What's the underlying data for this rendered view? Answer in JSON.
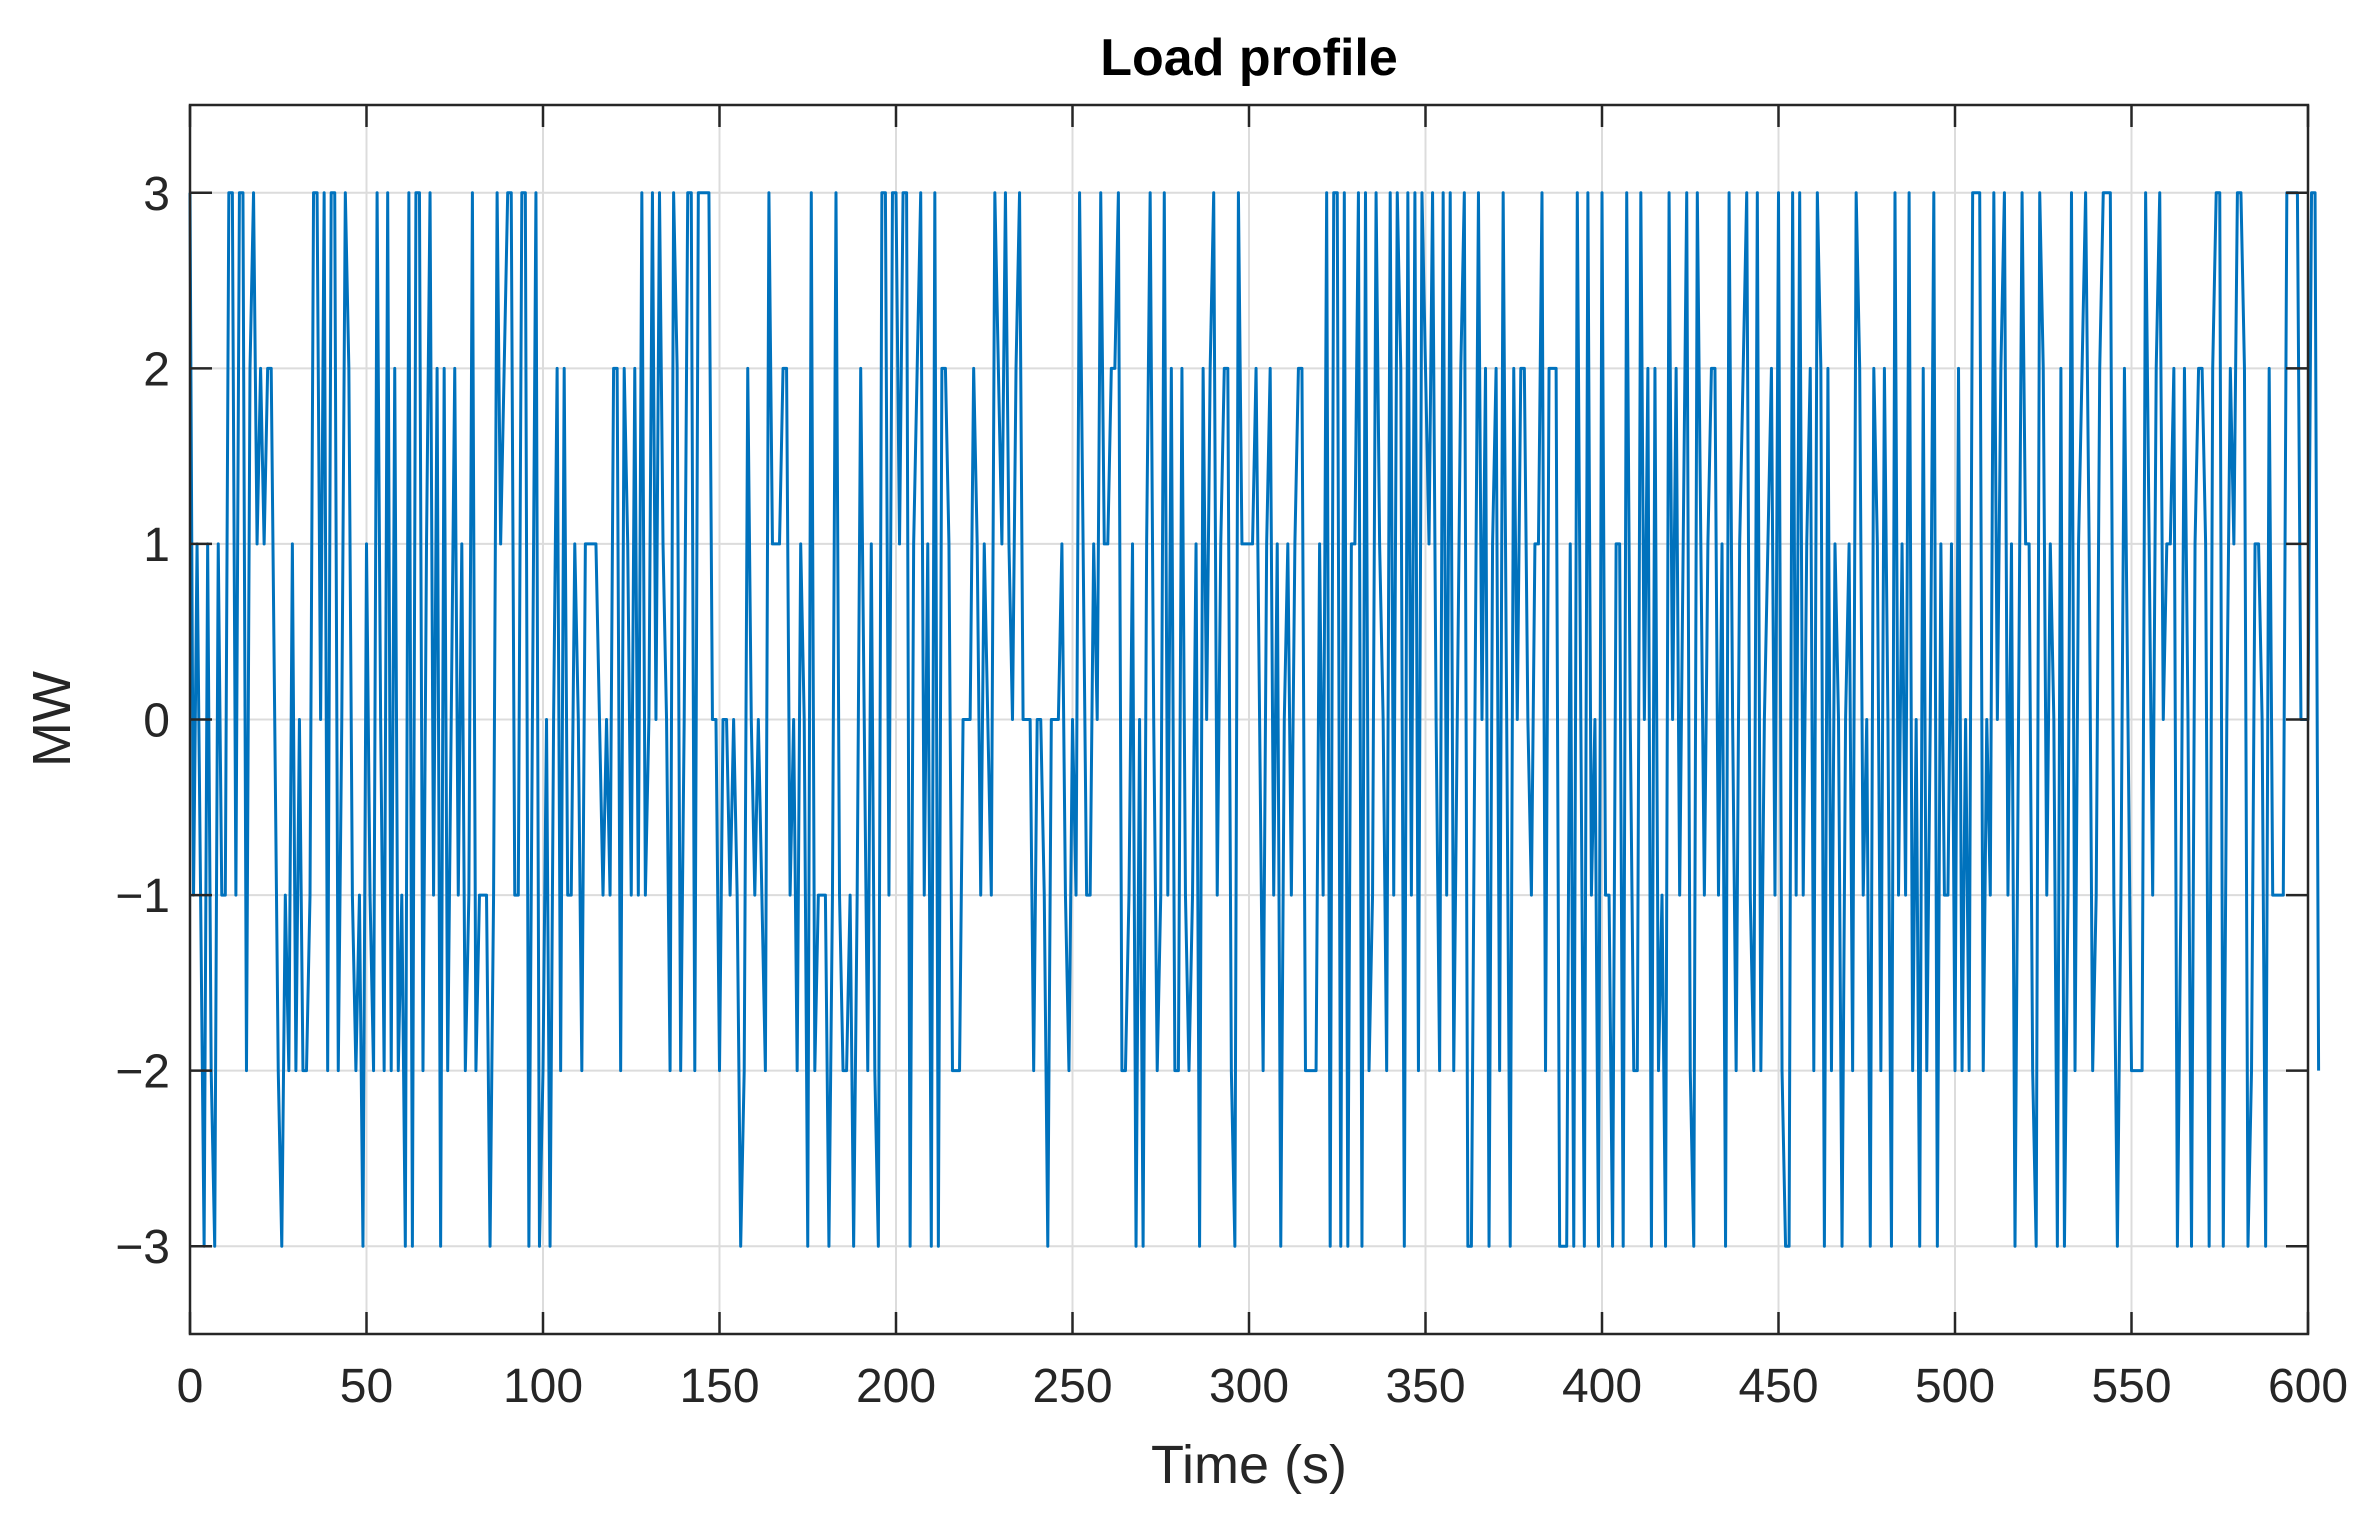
{
  "chart_data": {
    "type": "line",
    "title": "Load profile",
    "xlabel": "Time (s)",
    "ylabel": "MW",
    "xlim": [
      0,
      600
    ],
    "ylim": [
      -3.5,
      3.5
    ],
    "xticks": [
      0,
      50,
      100,
      150,
      200,
      250,
      300,
      350,
      400,
      450,
      500,
      550,
      600
    ],
    "yticks": [
      -3,
      -2,
      -1,
      0,
      1,
      2,
      3
    ],
    "xtick_labels": [
      "0",
      "50",
      "100",
      "150",
      "200",
      "250",
      "300",
      "350",
      "400",
      "450",
      "500",
      "550",
      "600"
    ],
    "ytick_labels": [
      "−3",
      "−2",
      "−1",
      "0",
      "1",
      "2",
      "3"
    ],
    "grid": true,
    "line_color": "#0072BD",
    "x_step": 1,
    "series": [
      {
        "values": [
          3,
          -1,
          1,
          -1,
          -3,
          1,
          -2,
          -3,
          1,
          -1,
          -1,
          3,
          3,
          -1,
          3,
          3,
          -2,
          2,
          3,
          1,
          2,
          1,
          2,
          2,
          0,
          -2,
          -3,
          -1,
          -2,
          1,
          -2,
          0,
          -2,
          -2,
          -1,
          3,
          3,
          0,
          3,
          -2,
          3,
          3,
          -2,
          0,
          3,
          2,
          -1,
          -2,
          -1,
          -3,
          1,
          -1,
          -2,
          3,
          0,
          -2,
          3,
          -2,
          2,
          -2,
          -1,
          -3,
          3,
          -3,
          3,
          3,
          -2,
          1,
          3,
          -1,
          2,
          -3,
          2,
          -2,
          0,
          2,
          -1,
          1,
          -2,
          -1,
          3,
          -2,
          -1,
          -1,
          -1,
          -3,
          -1,
          3,
          1,
          2,
          3,
          3,
          -1,
          -1,
          3,
          3,
          -3,
          0,
          3,
          -3,
          -2,
          0,
          -3,
          0,
          2,
          -2,
          2,
          -1,
          -1,
          1,
          0,
          -2,
          1,
          1,
          1,
          1,
          0,
          -1,
          0,
          -1,
          2,
          2,
          -2,
          2,
          1,
          -1,
          2,
          -1,
          3,
          -1,
          0,
          3,
          0,
          3,
          1,
          0,
          -2,
          3,
          2,
          -2,
          0,
          3,
          3,
          -2,
          3,
          3,
          3,
          3,
          0,
          0,
          -2,
          0,
          0,
          -1,
          0,
          -1,
          -3,
          -2,
          2,
          0,
          -1,
          0,
          -1,
          -2,
          3,
          1,
          1,
          1,
          2,
          2,
          -1,
          0,
          -2,
          1,
          0,
          -3,
          3,
          -2,
          -1,
          -1,
          -1,
          -3,
          -1,
          3,
          -1,
          -2,
          -2,
          -1,
          -3,
          -1,
          2,
          0,
          -2,
          1,
          -2,
          -3,
          3,
          3,
          -1,
          3,
          3,
          1,
          3,
          3,
          -3,
          1,
          2,
          3,
          -1,
          1,
          -3,
          3,
          -3,
          2,
          2,
          1,
          -2,
          -2,
          -2,
          0,
          0,
          0,
          2,
          1,
          -1,
          1,
          0,
          -1,
          3,
          2,
          1,
          3,
          1,
          0,
          2,
          3,
          0,
          0,
          0,
          -2,
          0,
          0,
          -1,
          -3,
          0,
          0,
          0,
          1,
          -1,
          -2,
          0,
          -1,
          3,
          1,
          -1,
          -1,
          1,
          0,
          3,
          1,
          1,
          2,
          2,
          3,
          -2,
          -2,
          -1,
          1,
          -3,
          0,
          -3,
          1,
          3,
          0,
          -2,
          -1,
          3,
          -1,
          2,
          -2,
          -2,
          2,
          -1,
          -2,
          -1,
          1,
          -3,
          2,
          0,
          2,
          3,
          -1,
          1,
          2,
          2,
          -2,
          -3,
          3,
          1,
          1,
          1,
          1,
          2,
          0,
          -2,
          1,
          2,
          -1,
          1,
          -3,
          0,
          1,
          -1,
          1,
          2,
          2,
          -2,
          -2,
          -2,
          -2,
          1,
          -1,
          3,
          -3,
          3,
          3,
          -3,
          3,
          -3,
          1,
          1,
          3,
          -3,
          3,
          -2,
          -1,
          3,
          1,
          0,
          -2,
          3,
          -1,
          3,
          2,
          -3,
          3,
          -1,
          3,
          -2,
          3,
          2,
          1,
          3,
          0,
          -2,
          3,
          -1,
          3,
          -2,
          0,
          2,
          3,
          -3,
          -3,
          0,
          3,
          0,
          2,
          -3,
          1,
          2,
          -2,
          3,
          0,
          -3,
          2,
          0,
          2,
          2,
          0,
          -1,
          1,
          1,
          3,
          -2,
          2,
          2,
          2,
          -3,
          -3,
          -3,
          1,
          -3,
          3,
          0,
          -3,
          3,
          -1,
          0,
          -3,
          3,
          -1,
          -1,
          -3,
          1,
          1,
          -3,
          3,
          0,
          -2,
          -2,
          3,
          0,
          2,
          -3,
          2,
          -2,
          -1,
          -3,
          3,
          0,
          2,
          -1,
          1,
          3,
          -2,
          -3,
          3,
          1,
          -1,
          1,
          2,
          2,
          -1,
          1,
          -3,
          3,
          0,
          -2,
          1,
          2,
          3,
          -1,
          -2,
          3,
          -2,
          0,
          1,
          2,
          -1,
          3,
          -2,
          -3,
          -3,
          3,
          -1,
          3,
          -1,
          1,
          2,
          -2,
          3,
          2,
          -3,
          2,
          -2,
          1,
          0,
          -3,
          0,
          1,
          -2,
          3,
          2,
          -1,
          0,
          -3,
          2,
          1,
          -2,
          2,
          0,
          -3,
          3,
          -1,
          1,
          -1,
          3,
          -2,
          0,
          -3,
          2,
          -2,
          0,
          3,
          -3,
          1,
          -1,
          -1,
          1,
          -2,
          2,
          -2,
          0,
          -2,
          3,
          3,
          3,
          -2,
          0,
          -1,
          3,
          0,
          2,
          3,
          -1,
          1,
          -3,
          0,
          3,
          1,
          1,
          -2,
          -3,
          3,
          2,
          -1,
          1,
          0,
          -3,
          2,
          -3,
          -1,
          3,
          -2,
          1,
          2,
          3,
          1,
          -2,
          -1,
          2,
          3,
          3,
          3,
          -1,
          -3,
          -1,
          2,
          0,
          -2,
          -2,
          -2,
          -2,
          3,
          1,
          -1,
          2,
          3,
          0,
          1,
          1,
          2,
          -3,
          -1,
          2,
          0,
          -3,
          1,
          2,
          2,
          1,
          -3,
          2,
          3,
          3,
          -3,
          0,
          2,
          1,
          3,
          3,
          2,
          -3,
          -2,
          1,
          1,
          0,
          -3,
          2,
          -1,
          -1,
          -1,
          -1,
          3,
          3,
          3,
          3,
          0,
          0,
          0,
          3,
          3,
          -2
        ]
      }
    ]
  }
}
